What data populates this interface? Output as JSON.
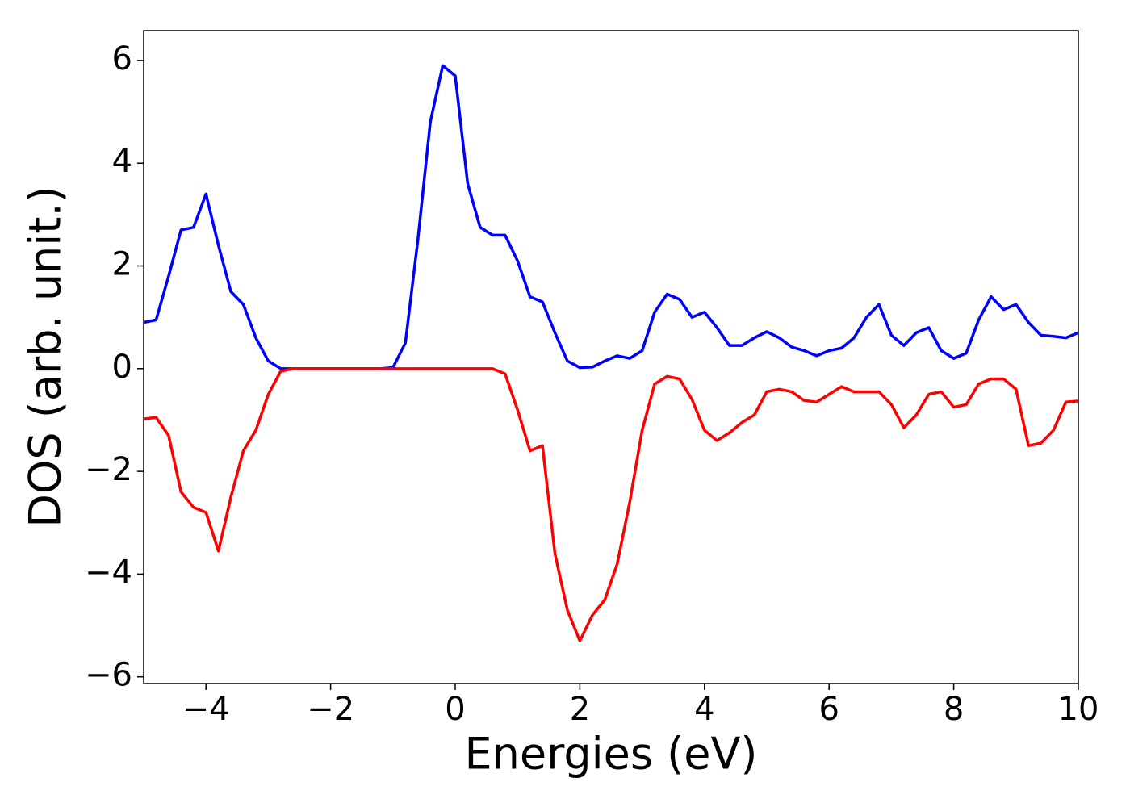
{
  "chart_data": {
    "type": "line",
    "xlabel": "Energies (eV)",
    "ylabel": "DOS (arb. unit.)",
    "x": [
      -5,
      -4.8,
      -4.6,
      -4.4,
      -4.2,
      -4,
      -3.8,
      -3.6,
      -3.4,
      -3.2,
      -3,
      -2.8,
      -2.6,
      -2.4,
      -2.2,
      -2,
      -1.8,
      -1.6,
      -1.4,
      -1.2,
      -1,
      -0.8,
      -0.6,
      -0.4,
      -0.2,
      0,
      0.2,
      0.4,
      0.6,
      0.8,
      1,
      1.2,
      1.4,
      1.6,
      1.8,
      2,
      2.2,
      2.4,
      2.6,
      2.8,
      3,
      3.2,
      3.4,
      3.6,
      3.8,
      4,
      4.2,
      4.4,
      4.6,
      4.8,
      5,
      5.2,
      5.4,
      5.6,
      5.8,
      6,
      6.2,
      6.4,
      6.6,
      6.8,
      7,
      7.2,
      7.4,
      7.6,
      7.8,
      8,
      8.2,
      8.4,
      8.6,
      8.8,
      9,
      9.2,
      9.4,
      9.6,
      9.8,
      10
    ],
    "series": [
      {
        "color": "#0000ff",
        "values": [
          0.9,
          0.95,
          1.8,
          2.7,
          2.75,
          3.4,
          2.4,
          1.5,
          1.25,
          0.6,
          0.15,
          0,
          0,
          0,
          0,
          0,
          0,
          0,
          0,
          0,
          0.02,
          0.5,
          2.5,
          4.8,
          5.9,
          5.7,
          3.6,
          2.75,
          2.6,
          2.6,
          2.1,
          1.4,
          1.3,
          0.7,
          0.15,
          0.02,
          0.03,
          0.15,
          0.25,
          0.2,
          0.35,
          1.1,
          1.45,
          1.35,
          1,
          1.1,
          0.8,
          0.45,
          0.45,
          0.6,
          0.72,
          0.6,
          0.42,
          0.35,
          0.25,
          0.35,
          0.4,
          0.6,
          1,
          1.25,
          0.65,
          0.45,
          0.7,
          0.8,
          0.35,
          0.2,
          0.3,
          0.95,
          1.4,
          1.15,
          1.25,
          0.9,
          0.65,
          0.63,
          0.6,
          0.7
        ]
      },
      {
        "color": "#ff0000",
        "values": [
          -0.98,
          -0.95,
          -1.3,
          -2.4,
          -2.7,
          -2.8,
          -3.55,
          -2.5,
          -1.6,
          -1.2,
          -0.5,
          -0.05,
          0,
          0,
          0,
          0,
          0,
          0,
          0,
          0,
          0,
          0,
          0,
          0,
          0,
          0,
          0,
          0,
          0,
          -0.1,
          -0.8,
          -1.6,
          -1.5,
          -3.6,
          -4.7,
          -5.3,
          -4.8,
          -4.5,
          -3.8,
          -2.6,
          -1.2,
          -0.3,
          -0.15,
          -0.2,
          -0.6,
          -1.2,
          -1.4,
          -1.25,
          -1.05,
          -0.9,
          -0.45,
          -0.4,
          -0.45,
          -0.62,
          -0.65,
          -0.5,
          -0.35,
          -0.45,
          -0.45,
          -0.45,
          -0.7,
          -1.15,
          -0.9,
          -0.5,
          -0.45,
          -0.75,
          -0.7,
          -0.3,
          -0.2,
          -0.2,
          -0.4,
          -1.5,
          -1.45,
          -1.2,
          -0.65,
          -0.63
        ]
      }
    ],
    "xlim": [
      -5,
      10
    ],
    "xticks": [
      {
        "value": -4,
        "label": "−4"
      },
      {
        "value": -2,
        "label": "−2"
      },
      0,
      2,
      4,
      6,
      8,
      10
    ],
    "ylim": [
      -6.13,
      6.58
    ],
    "yticks": [
      {
        "value": -6,
        "label": "−6"
      },
      {
        "value": -4,
        "label": "−4"
      },
      {
        "value": -2,
        "label": "−2"
      },
      0,
      2,
      4,
      6
    ],
    "grid": false
  }
}
